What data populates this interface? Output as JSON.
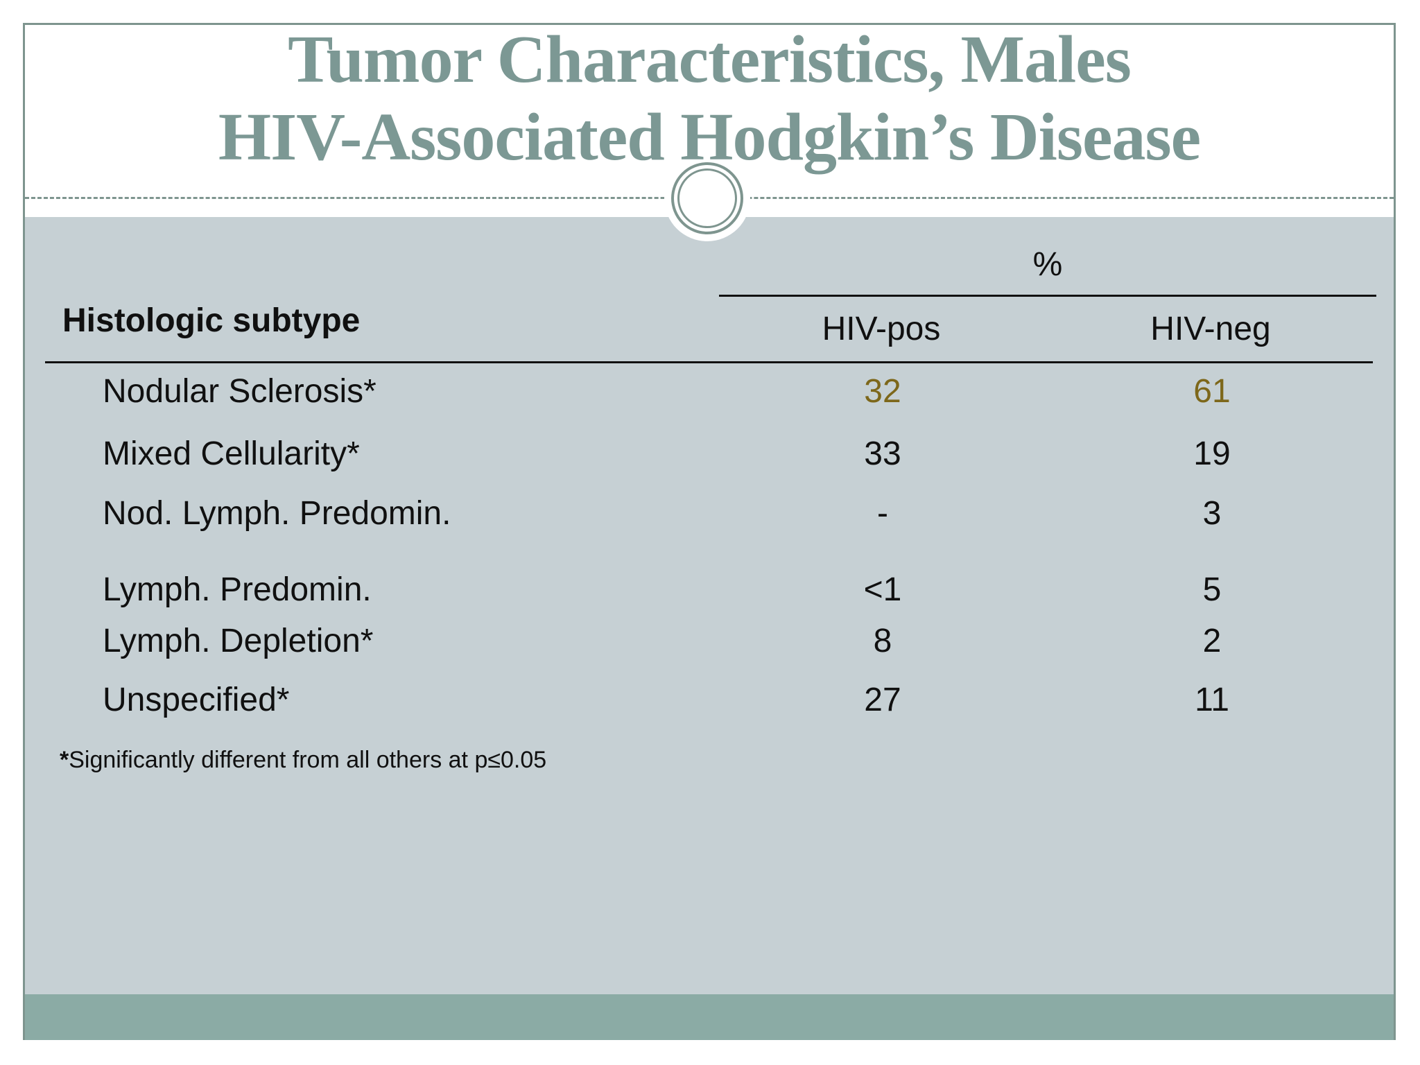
{
  "title": {
    "line1": "Tumor Characteristics, Males",
    "line2": "HIV-Associated Hodgkin’s Disease"
  },
  "table": {
    "col_group_header": "%",
    "row_header": "Histologic subtype",
    "columns": [
      "HIV-pos",
      "HIV-neg"
    ],
    "rows": [
      {
        "label": "Nodular Sclerosis*",
        "hiv_pos": "32",
        "hiv_neg": "61"
      },
      {
        "label": "Mixed Cellularity*",
        "hiv_pos": "33",
        "hiv_neg": "19"
      },
      {
        "label": "Nod. Lymph. Predomin.",
        "hiv_pos": "-",
        "hiv_neg": "3"
      },
      {
        "label": "Lymph. Predomin.",
        "hiv_pos": "<1",
        "hiv_neg": "5"
      },
      {
        "label": "Lymph. Depletion*",
        "hiv_pos": "8",
        "hiv_neg": "2"
      },
      {
        "label": "Unspecified*",
        "hiv_pos": "27",
        "hiv_neg": "11"
      }
    ],
    "footnote_marker": "*",
    "footnote_text": "Significantly different from all others at p≤0.05"
  },
  "colors": {
    "accent_sage_border": "#7e958f",
    "title_text": "#7c9894",
    "content_background": "#c6d0d4",
    "footer_bar": "#8baba5",
    "highlight_value": "#7d671a",
    "body_text": "#101010"
  }
}
